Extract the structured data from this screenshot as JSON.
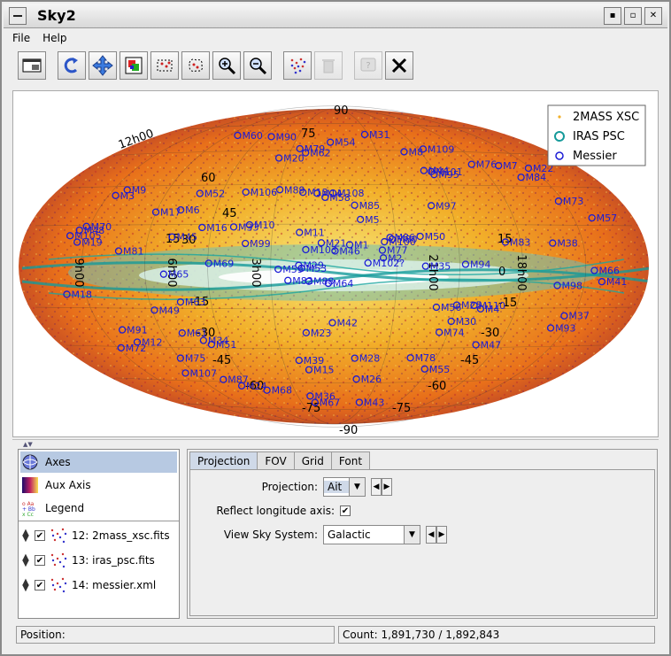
{
  "window": {
    "title": "Sky2"
  },
  "menu": {
    "file": "File",
    "help": "Help"
  },
  "toolbar": {
    "buttons": [
      {
        "icon": "window-icon"
      },
      {
        "icon": "replot-icon"
      },
      {
        "icon": "pan-icon"
      },
      {
        "icon": "zoom-data-icon"
      },
      {
        "icon": "subset-rect-icon"
      },
      {
        "icon": "subset-blob-icon"
      },
      {
        "icon": "zoom-in-icon"
      },
      {
        "icon": "zoom-out-icon"
      },
      {
        "icon": "layers-icon"
      },
      {
        "icon": "delete-icon"
      },
      {
        "icon": "help-icon"
      },
      {
        "icon": "close-icon"
      }
    ]
  },
  "plot": {
    "legend": [
      "2MASS XSC",
      "IRAS PSC",
      "Messier"
    ],
    "lat_labels": [
      "90",
      "75",
      "60",
      "45",
      "30",
      "15",
      "0",
      "-15",
      "-30",
      "-45",
      "-60",
      "-75",
      "-90"
    ],
    "lon_labels": [
      "12h00",
      "9h00",
      "6h00",
      "3h00",
      "21h00",
      "18h00"
    ],
    "messier": [
      "M64",
      "M3",
      "M53",
      "M100",
      "M51",
      "M109",
      "M108",
      "M101",
      "M102?",
      "M81",
      "M82",
      "M97",
      "M13",
      "M5",
      "M12",
      "M10",
      "M107",
      "M14",
      "M80",
      "M4",
      "M9",
      "M62",
      "M19",
      "M56",
      "M57",
      "M29",
      "M39",
      "M103",
      "M52",
      "M76",
      "M34",
      "M110",
      "M31",
      "M33",
      "M45",
      "M74",
      "M77",
      "M15",
      "M2",
      "M72",
      "M73",
      "M30",
      "M55",
      "M75",
      "M28",
      "M22",
      "M54",
      "M69",
      "M70",
      "M6",
      "M7",
      "M8",
      "M20",
      "M21",
      "M23",
      "M24",
      "M25",
      "M16",
      "M17",
      "M18",
      "M11",
      "M26",
      "M1",
      "M35",
      "M37",
      "M36",
      "M38",
      "M42",
      "M43",
      "M78",
      "M79",
      "M41",
      "M50",
      "M47",
      "M46",
      "M93",
      "M48",
      "M67",
      "M44",
      "M95",
      "M65",
      "M66",
      "M105",
      "M49",
      "M61",
      "M87",
      "M86",
      "M84",
      "M99",
      "M98",
      "M58",
      "M59",
      "M60",
      "M88",
      "M89",
      "M90",
      "M91",
      "M85",
      "M106",
      "M94",
      "M63",
      "M68",
      "M83"
    ]
  },
  "layers_panel": {
    "axes": "Axes",
    "aux_axis": "Aux Axis",
    "legend": "Legend",
    "layers": [
      {
        "label": "12: 2mass_xsc.fits",
        "checked": true
      },
      {
        "label": "13: iras_psc.fits",
        "checked": true
      },
      {
        "label": "14: messier.xml",
        "checked": true
      }
    ]
  },
  "config": {
    "tabs": [
      "Projection",
      "FOV",
      "Grid",
      "Font"
    ],
    "projection_label": "Projection:",
    "projection_value": "Ait",
    "reflect_label": "Reflect longitude axis:",
    "reflect_checked": true,
    "sky_system_label": "View Sky System:",
    "sky_system_value": "Galactic"
  },
  "status": {
    "position_label": "Position:",
    "count": "Count: 1,891,730 / 1,892,843"
  },
  "colors": {
    "selection": "#b7c9e2",
    "messier": "#1b1bd6",
    "iras": "#1a9a9a"
  }
}
